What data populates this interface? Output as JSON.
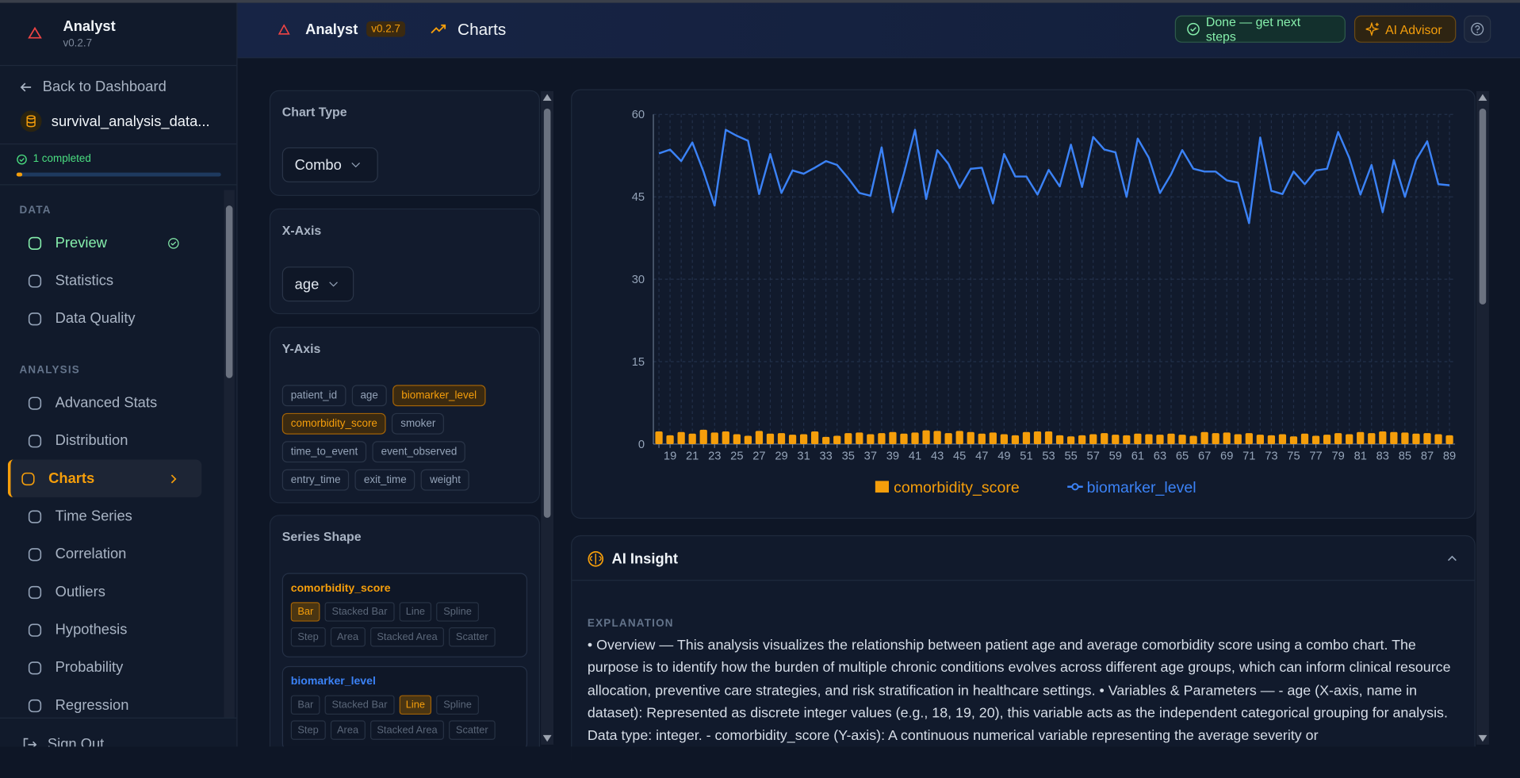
{
  "sidebar": {
    "app_name": "Analyst",
    "version": "v0.2.7",
    "back": "Back to Dashboard",
    "dataset": "survival_analysis_data...",
    "progress": "1 completed",
    "sections": [
      {
        "title": "DATA",
        "items": [
          "Preview",
          "Statistics",
          "Data Quality"
        ]
      },
      {
        "title": "ANALYSIS",
        "items": [
          "Advanced Stats",
          "Distribution",
          "Charts",
          "Time Series",
          "Correlation",
          "Outliers",
          "Hypothesis",
          "Probability",
          "Regression"
        ]
      }
    ],
    "active": [
      1,
      2
    ],
    "completed": [
      0,
      0
    ],
    "sign_out": "Sign Out"
  },
  "header": {
    "app_name": "Analyst",
    "version": "v0.2.7",
    "page": "Charts",
    "buttons": [
      "Done — get next steps",
      "AI Advisor"
    ]
  },
  "config": {
    "chart_type": {
      "label": "Chart Type",
      "value": "Combo"
    },
    "x_axis": {
      "label": "X-Axis",
      "value": "age"
    },
    "y_axis": {
      "label": "Y-Axis",
      "options": [
        "patient_id",
        "age",
        "biomarker_level",
        "comorbidity_score",
        "smoker",
        "time_to_event",
        "event_observed",
        "entry_time",
        "exit_time",
        "weight"
      ],
      "selected": [
        2,
        3
      ]
    },
    "series_shape": {
      "label": "Series Shape",
      "series": [
        {
          "name": "comorbidity_score",
          "color": "#f59e0b",
          "shapes": [
            "Bar",
            "Stacked Bar",
            "Line",
            "Spline",
            "Step",
            "Area",
            "Stacked Area",
            "Scatter"
          ],
          "selected": 0
        },
        {
          "name": "biomarker_level",
          "color": "#3b82f6",
          "shapes": [
            "Bar",
            "Stacked Bar",
            "Line",
            "Spline",
            "Step",
            "Area",
            "Stacked Area",
            "Scatter"
          ],
          "selected": 2
        }
      ]
    }
  },
  "chart_data": {
    "type": "combo",
    "categories": [
      null,
      19,
      null,
      21,
      null,
      23,
      null,
      25,
      null,
      27,
      null,
      29,
      null,
      31,
      null,
      33,
      null,
      35,
      null,
      37,
      null,
      39,
      null,
      41,
      null,
      43,
      null,
      45,
      null,
      47,
      null,
      49,
      null,
      51,
      null,
      53,
      null,
      55,
      null,
      57,
      null,
      59,
      null,
      61,
      null,
      63,
      null,
      65,
      null,
      67,
      null,
      69,
      null,
      71,
      null,
      73,
      null,
      75,
      null,
      77,
      null,
      79,
      null,
      81,
      null,
      83,
      null,
      85,
      null,
      87,
      null,
      89
    ],
    "series": [
      {
        "name": "comorbidity_score",
        "type": "bar",
        "color": "#f59e0b",
        "values": [
          2.3,
          1.6,
          2.2,
          1.9,
          2.6,
          2.1,
          2.3,
          1.8,
          1.5,
          2.4,
          1.9,
          2.0,
          1.7,
          1.8,
          2.3,
          1.3,
          1.5,
          2.0,
          2.1,
          1.8,
          2.0,
          2.2,
          1.9,
          2.1,
          2.5,
          2.4,
          2.0,
          2.4,
          2.2,
          1.9,
          2.1,
          1.8,
          1.6,
          2.2,
          2.3,
          2.3,
          1.6,
          1.4,
          1.6,
          1.8,
          2.0,
          1.7,
          1.6,
          1.9,
          1.8,
          1.7,
          1.9,
          1.7,
          1.5,
          2.2,
          2.0,
          2.1,
          1.8,
          2.0,
          1.7,
          1.6,
          1.8,
          1.4,
          1.9,
          1.5,
          1.7,
          2.0,
          1.8,
          2.2,
          2.0,
          2.3,
          2.2,
          2.1,
          1.9,
          2.0,
          1.8,
          1.6
        ]
      },
      {
        "name": "biomarker_level",
        "type": "line",
        "color": "#3b82f6",
        "values": [
          52.9,
          53.6,
          51.5,
          54.9,
          49.6,
          43.4,
          57.2,
          56.1,
          55.2,
          45.5,
          52.8,
          45.7,
          49.8,
          49.2,
          50.3,
          51.5,
          50.8,
          48.4,
          45.7,
          45.2,
          54.0,
          42.2,
          49.2,
          57.2,
          44.6,
          53.5,
          51.0,
          46.6,
          50.1,
          50.3,
          43.8,
          52.8,
          48.7,
          48.7,
          45.4,
          49.9,
          46.9,
          54.5,
          46.8,
          55.9,
          53.6,
          53.1,
          45.0,
          55.6,
          52.1,
          45.7,
          49.1,
          53.5,
          50.1,
          49.6,
          49.6,
          48.0,
          47.6,
          40.2,
          55.8,
          46.1,
          45.5,
          49.6,
          47.3,
          49.8,
          50.1,
          56.8,
          52.1,
          45.4,
          50.8,
          42.2,
          51.7,
          45.0,
          51.7,
          55.1,
          47.3,
          47.1
        ]
      }
    ],
    "ylim": [
      0,
      60
    ],
    "yticks": [
      0,
      15,
      30,
      45,
      60
    ],
    "grid": true,
    "legend": "bottom"
  },
  "insight": {
    "title": "AI Insight",
    "section": "EXPLANATION",
    "text": "• Overview — This analysis visualizes the relationship between patient age and average comorbidity score using a combo chart. The purpose is to identify how the burden of multiple chronic conditions evolves across different age groups, which can inform clinical resource allocation, preventive care strategies, and risk stratification in healthcare settings. • Variables & Parameters — - age (X-axis, name in dataset): Represented as discrete integer values (e.g., 18, 19, 20), this variable acts as the independent categorical grouping for analysis. Data type: integer. - comorbidity_score (Y-axis): A continuous numerical variable representing the average severity or"
  }
}
